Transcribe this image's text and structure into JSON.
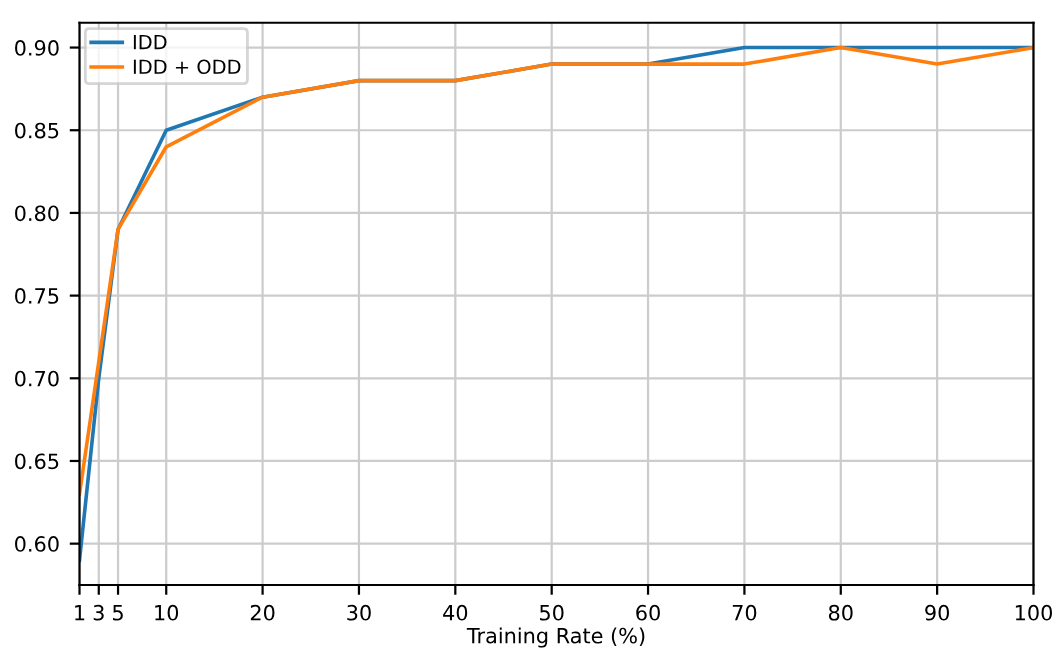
{
  "chart_data": {
    "type": "line",
    "xlabel": "Training Rate (%)",
    "x": [
      1,
      3,
      5,
      10,
      20,
      30,
      40,
      50,
      60,
      70,
      80,
      90,
      100
    ],
    "series": [
      {
        "name": "IDD",
        "color": "#1f77b4",
        "values": [
          0.59,
          0.7,
          0.79,
          0.85,
          0.87,
          0.88,
          0.88,
          0.89,
          0.89,
          0.9,
          0.9,
          0.9,
          0.9
        ]
      },
      {
        "name": "IDD + ODD",
        "color": "#ff7f0e",
        "values": [
          0.63,
          0.71,
          0.79,
          0.84,
          0.87,
          0.88,
          0.88,
          0.89,
          0.89,
          0.89,
          0.9,
          0.89,
          0.9
        ]
      }
    ],
    "xlim": [
      1,
      100
    ],
    "xticks": [
      1,
      3,
      5,
      10,
      20,
      30,
      40,
      50,
      60,
      70,
      80,
      90,
      100
    ],
    "ylim": [
      0.575,
      0.915
    ],
    "yticks": [
      {
        "value": 0.6,
        "label": "0.60"
      },
      {
        "value": 0.65,
        "label": "0.65"
      },
      {
        "value": 0.7,
        "label": "0.70"
      },
      {
        "value": 0.75,
        "label": "0.75"
      },
      {
        "value": 0.8,
        "label": "0.80"
      },
      {
        "value": 0.85,
        "label": "0.85"
      },
      {
        "value": 0.9,
        "label": "0.90"
      }
    ],
    "grid": true,
    "legend": "top left",
    "marker": "none",
    "line_style": "solid"
  }
}
